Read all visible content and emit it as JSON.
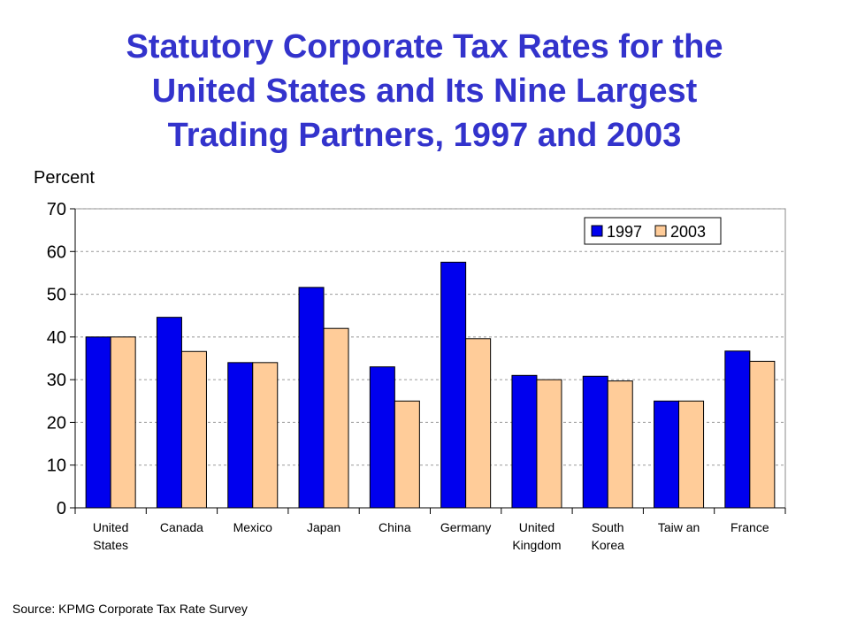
{
  "title_lines": [
    "Statutory Corporate Tax Rates for the",
    "United States and Its Nine Largest",
    "Trading Partners, 1997 and 2003"
  ],
  "source": "Source: KPMG Corporate Tax Rate Survey",
  "colors": {
    "title": "#3333cc",
    "series_1997": "#0000ee",
    "series_2003": "#ffcc99",
    "grid": "#999999"
  },
  "chart_data": {
    "type": "bar",
    "title": "Statutory Corporate Tax Rates for the United States and Its Nine Largest Trading Partners, 1997 and 2003",
    "ylabel": "Percent",
    "xlabel": "",
    "ylim": [
      0,
      70
    ],
    "yticks": [
      0,
      10,
      20,
      30,
      40,
      50,
      60,
      70
    ],
    "grid": true,
    "legend_position": "top-right",
    "categories": [
      [
        "United",
        "States"
      ],
      [
        "Canada"
      ],
      [
        "Mexico"
      ],
      [
        "Japan"
      ],
      [
        "China"
      ],
      [
        "Germany"
      ],
      [
        "United",
        "Kingdom"
      ],
      [
        "South",
        "Korea"
      ],
      [
        "Taiw an"
      ],
      [
        "France"
      ]
    ],
    "series": [
      {
        "name": "1997",
        "values": [
          40,
          44.6,
          34,
          51.6,
          33,
          57.5,
          31,
          30.8,
          25,
          36.7
        ]
      },
      {
        "name": "2003",
        "values": [
          40,
          36.6,
          34,
          42,
          25,
          39.6,
          30,
          29.7,
          25,
          34.3
        ]
      }
    ]
  }
}
